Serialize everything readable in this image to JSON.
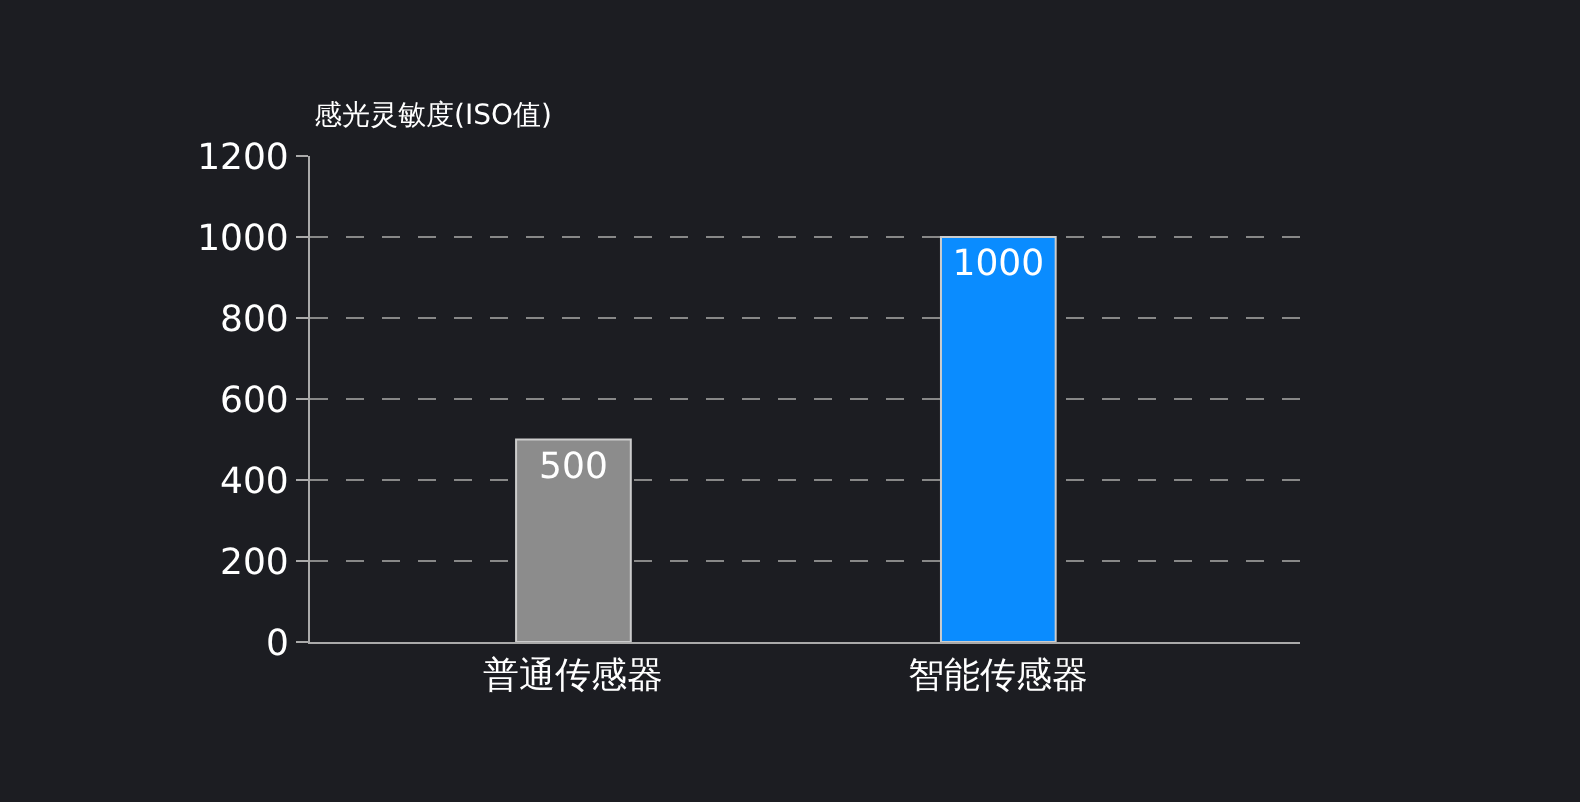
{
  "chart_data": {
    "type": "bar",
    "ylabel": "感光灵敏度(ISO值)",
    "categories": [
      "普通传感器",
      "智能传感器"
    ],
    "values": [
      500,
      1000
    ],
    "colors": [
      "#8c8c8c",
      "#0a8cff"
    ],
    "ylim": [
      0,
      1200
    ],
    "yticks": [
      0,
      200,
      400,
      600,
      800,
      1000,
      1200
    ],
    "grid": "y",
    "data_labels": true,
    "legend": false
  }
}
